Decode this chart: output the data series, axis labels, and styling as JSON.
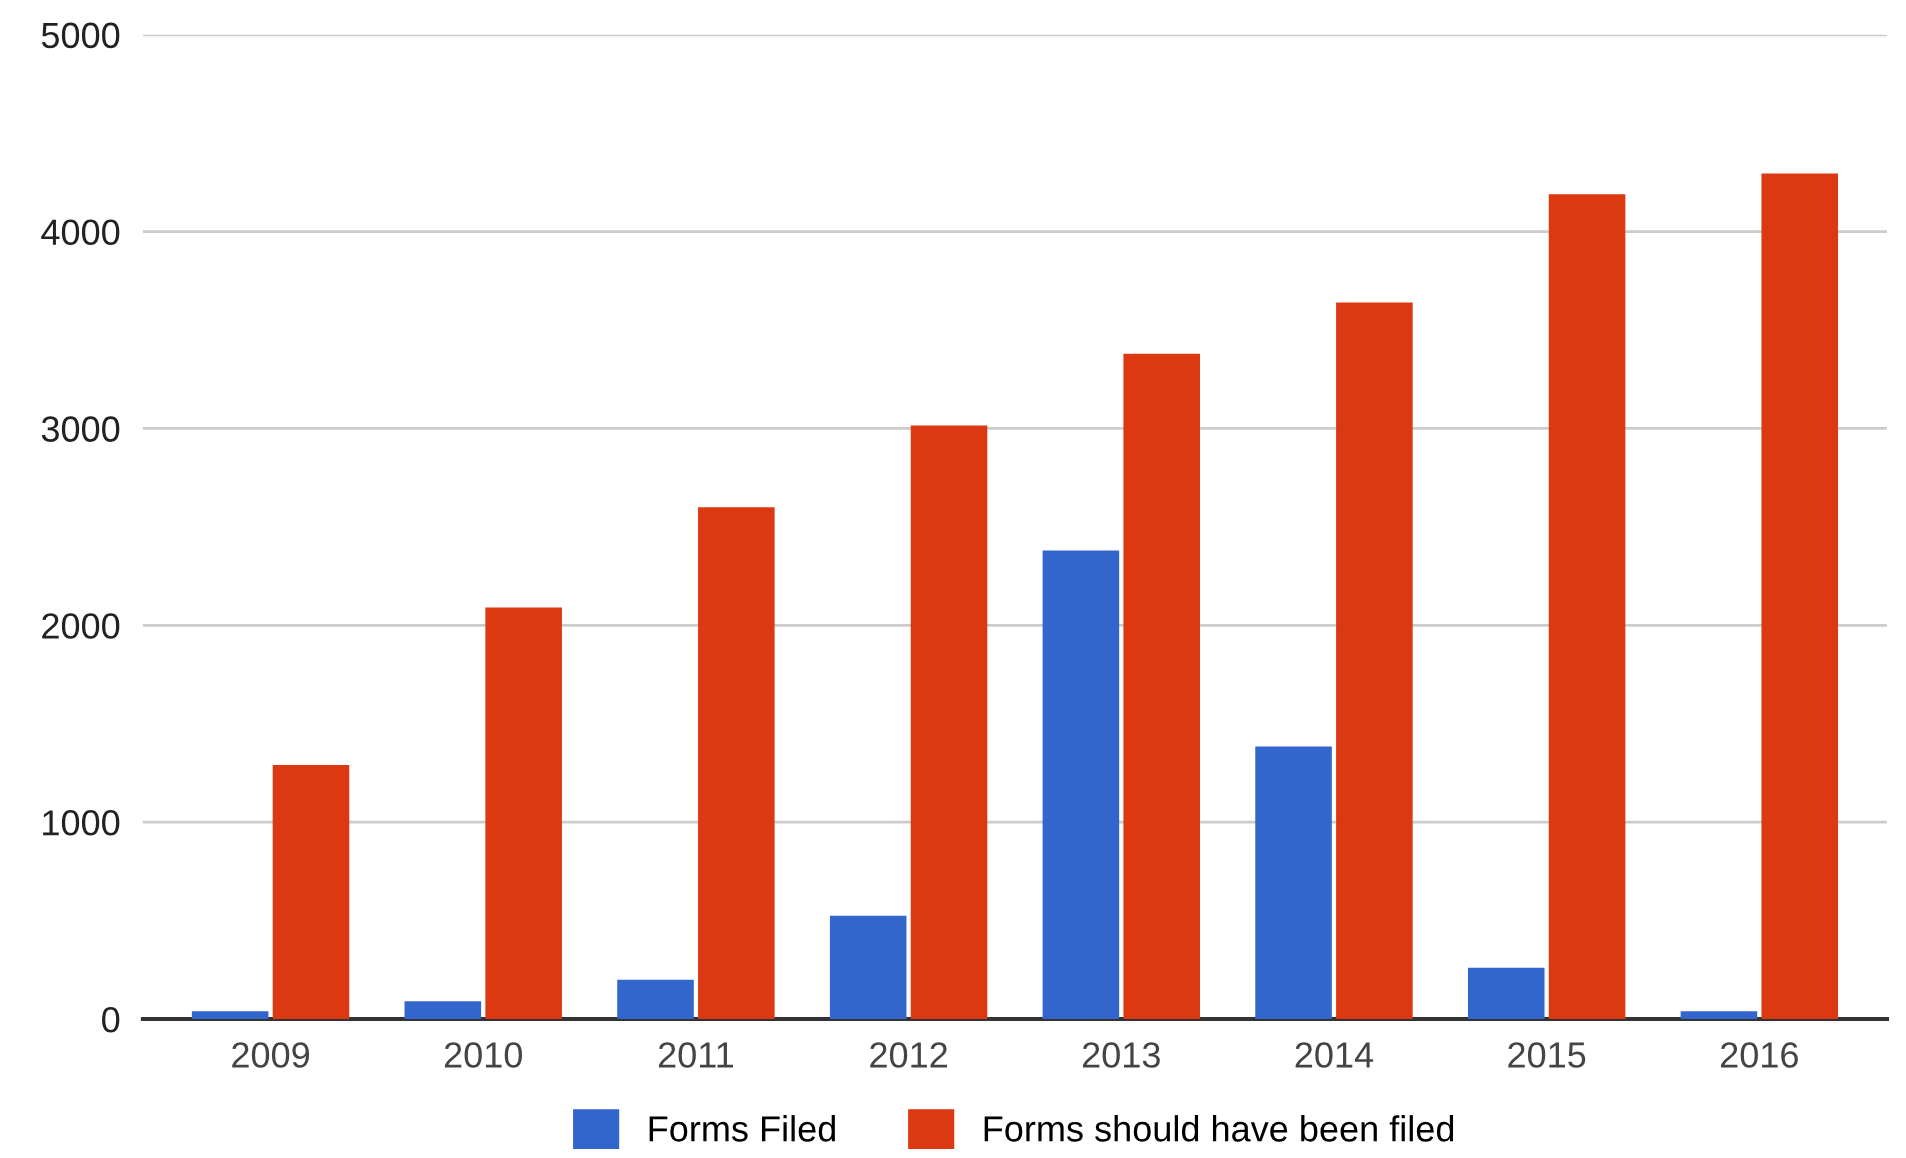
{
  "chart_data": {
    "type": "bar",
    "categories": [
      "2009",
      "2010",
      "2011",
      "2012",
      "2013",
      "2014",
      "2015",
      "2016"
    ],
    "series": [
      {
        "name": "Forms Filed",
        "color": "#3366cc",
        "values": [
          40,
          90,
          200,
          525,
          2380,
          1385,
          260,
          40
        ]
      },
      {
        "name": "Forms should have been filed",
        "color": "#dc3912",
        "values": [
          1290,
          2090,
          2600,
          3015,
          3380,
          3640,
          4190,
          4295
        ]
      }
    ],
    "ylim": [
      0,
      5000
    ],
    "yticks": [
      0,
      1000,
      2000,
      3000,
      4000,
      5000
    ],
    "grid": "y",
    "legend": "bottom"
  }
}
